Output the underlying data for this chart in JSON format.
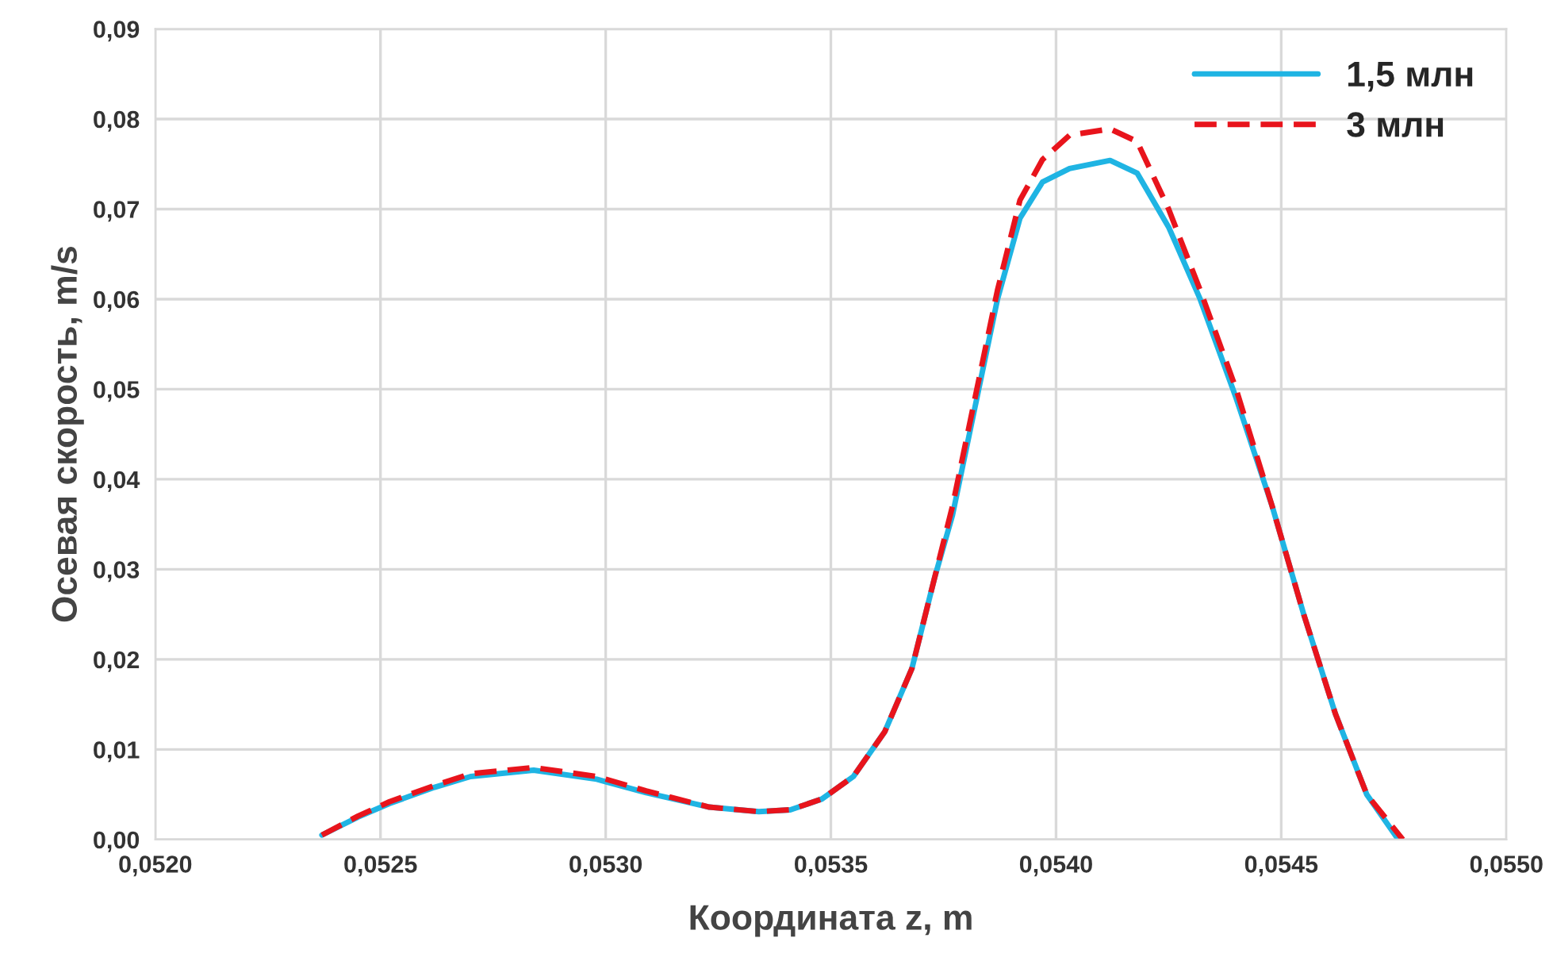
{
  "chart_data": {
    "type": "line",
    "xlabel": "Координата z, m",
    "ylabel": "Осевая скорость, m/s",
    "xlim": [
      0.052,
      0.055
    ],
    "xticks": [
      {
        "value": 0.052,
        "label": "0,0520"
      },
      {
        "value": 0.0525,
        "label": "0,0525"
      },
      {
        "value": 0.053,
        "label": "0,0530"
      },
      {
        "value": 0.0535,
        "label": "0,0535"
      },
      {
        "value": 0.054,
        "label": "0,0540"
      },
      {
        "value": 0.0545,
        "label": "0,0545"
      },
      {
        "value": 0.055,
        "label": "0,0550"
      }
    ],
    "ylim": [
      0,
      0.09
    ],
    "yticks": [
      {
        "value": 0,
        "label": "0,00"
      },
      {
        "value": 0.01,
        "label": "0,01"
      },
      {
        "value": 0.02,
        "label": "0,02"
      },
      {
        "value": 0.03,
        "label": "0,03"
      },
      {
        "value": 0.04,
        "label": "0,04"
      },
      {
        "value": 0.05,
        "label": "0,05"
      },
      {
        "value": 0.06,
        "label": "0,06"
      },
      {
        "value": 0.07,
        "label": "0,07"
      },
      {
        "value": 0.08,
        "label": "0,08"
      },
      {
        "value": 0.09,
        "label": "0,09"
      }
    ],
    "grid": true,
    "legend": "top right",
    "marker": "none",
    "series": [
      {
        "name": "1,5 млн",
        "color": "#1fb4e3",
        "line_style": "solid",
        "x": [
          0.05237,
          0.05245,
          0.05252,
          0.05262,
          0.0527,
          0.05284,
          0.05298,
          0.05309,
          0.05323,
          0.05334,
          0.05341,
          0.05348,
          0.05355,
          0.05362,
          0.05368,
          0.05373,
          0.05377,
          0.05382,
          0.05387,
          0.05392,
          0.05397,
          0.05403,
          0.05412,
          0.05418,
          0.05425,
          0.05432,
          0.0544,
          0.05448,
          0.05455,
          0.05462,
          0.05469,
          0.05476
        ],
        "values": [
          0.0005,
          0.0025,
          0.004,
          0.0058,
          0.007,
          0.0077,
          0.0067,
          0.0052,
          0.0036,
          0.0031,
          0.0033,
          0.0045,
          0.007,
          0.012,
          0.019,
          0.029,
          0.036,
          0.048,
          0.06,
          0.069,
          0.073,
          0.0745,
          0.0754,
          0.074,
          0.068,
          0.06,
          0.049,
          0.037,
          0.025,
          0.014,
          0.005,
          0.0
        ]
      },
      {
        "name": "3 млн",
        "color": "#e8141c",
        "line_style": "dashed",
        "x": [
          0.05237,
          0.05245,
          0.05252,
          0.05262,
          0.0527,
          0.05284,
          0.05298,
          0.05309,
          0.05323,
          0.05334,
          0.05341,
          0.05348,
          0.05355,
          0.05362,
          0.05368,
          0.05373,
          0.05377,
          0.05382,
          0.05387,
          0.05392,
          0.05397,
          0.05403,
          0.05412,
          0.05418,
          0.05425,
          0.05432,
          0.0544,
          0.05448,
          0.05455,
          0.05462,
          0.05469,
          0.05477
        ],
        "values": [
          0.0005,
          0.0026,
          0.0042,
          0.006,
          0.0073,
          0.008,
          0.007,
          0.0054,
          0.0036,
          0.0031,
          0.0033,
          0.0045,
          0.007,
          0.012,
          0.019,
          0.029,
          0.037,
          0.049,
          0.061,
          0.071,
          0.0755,
          0.0782,
          0.0789,
          0.0775,
          0.07,
          0.061,
          0.05,
          0.037,
          0.025,
          0.014,
          0.005,
          0.0
        ]
      }
    ]
  }
}
